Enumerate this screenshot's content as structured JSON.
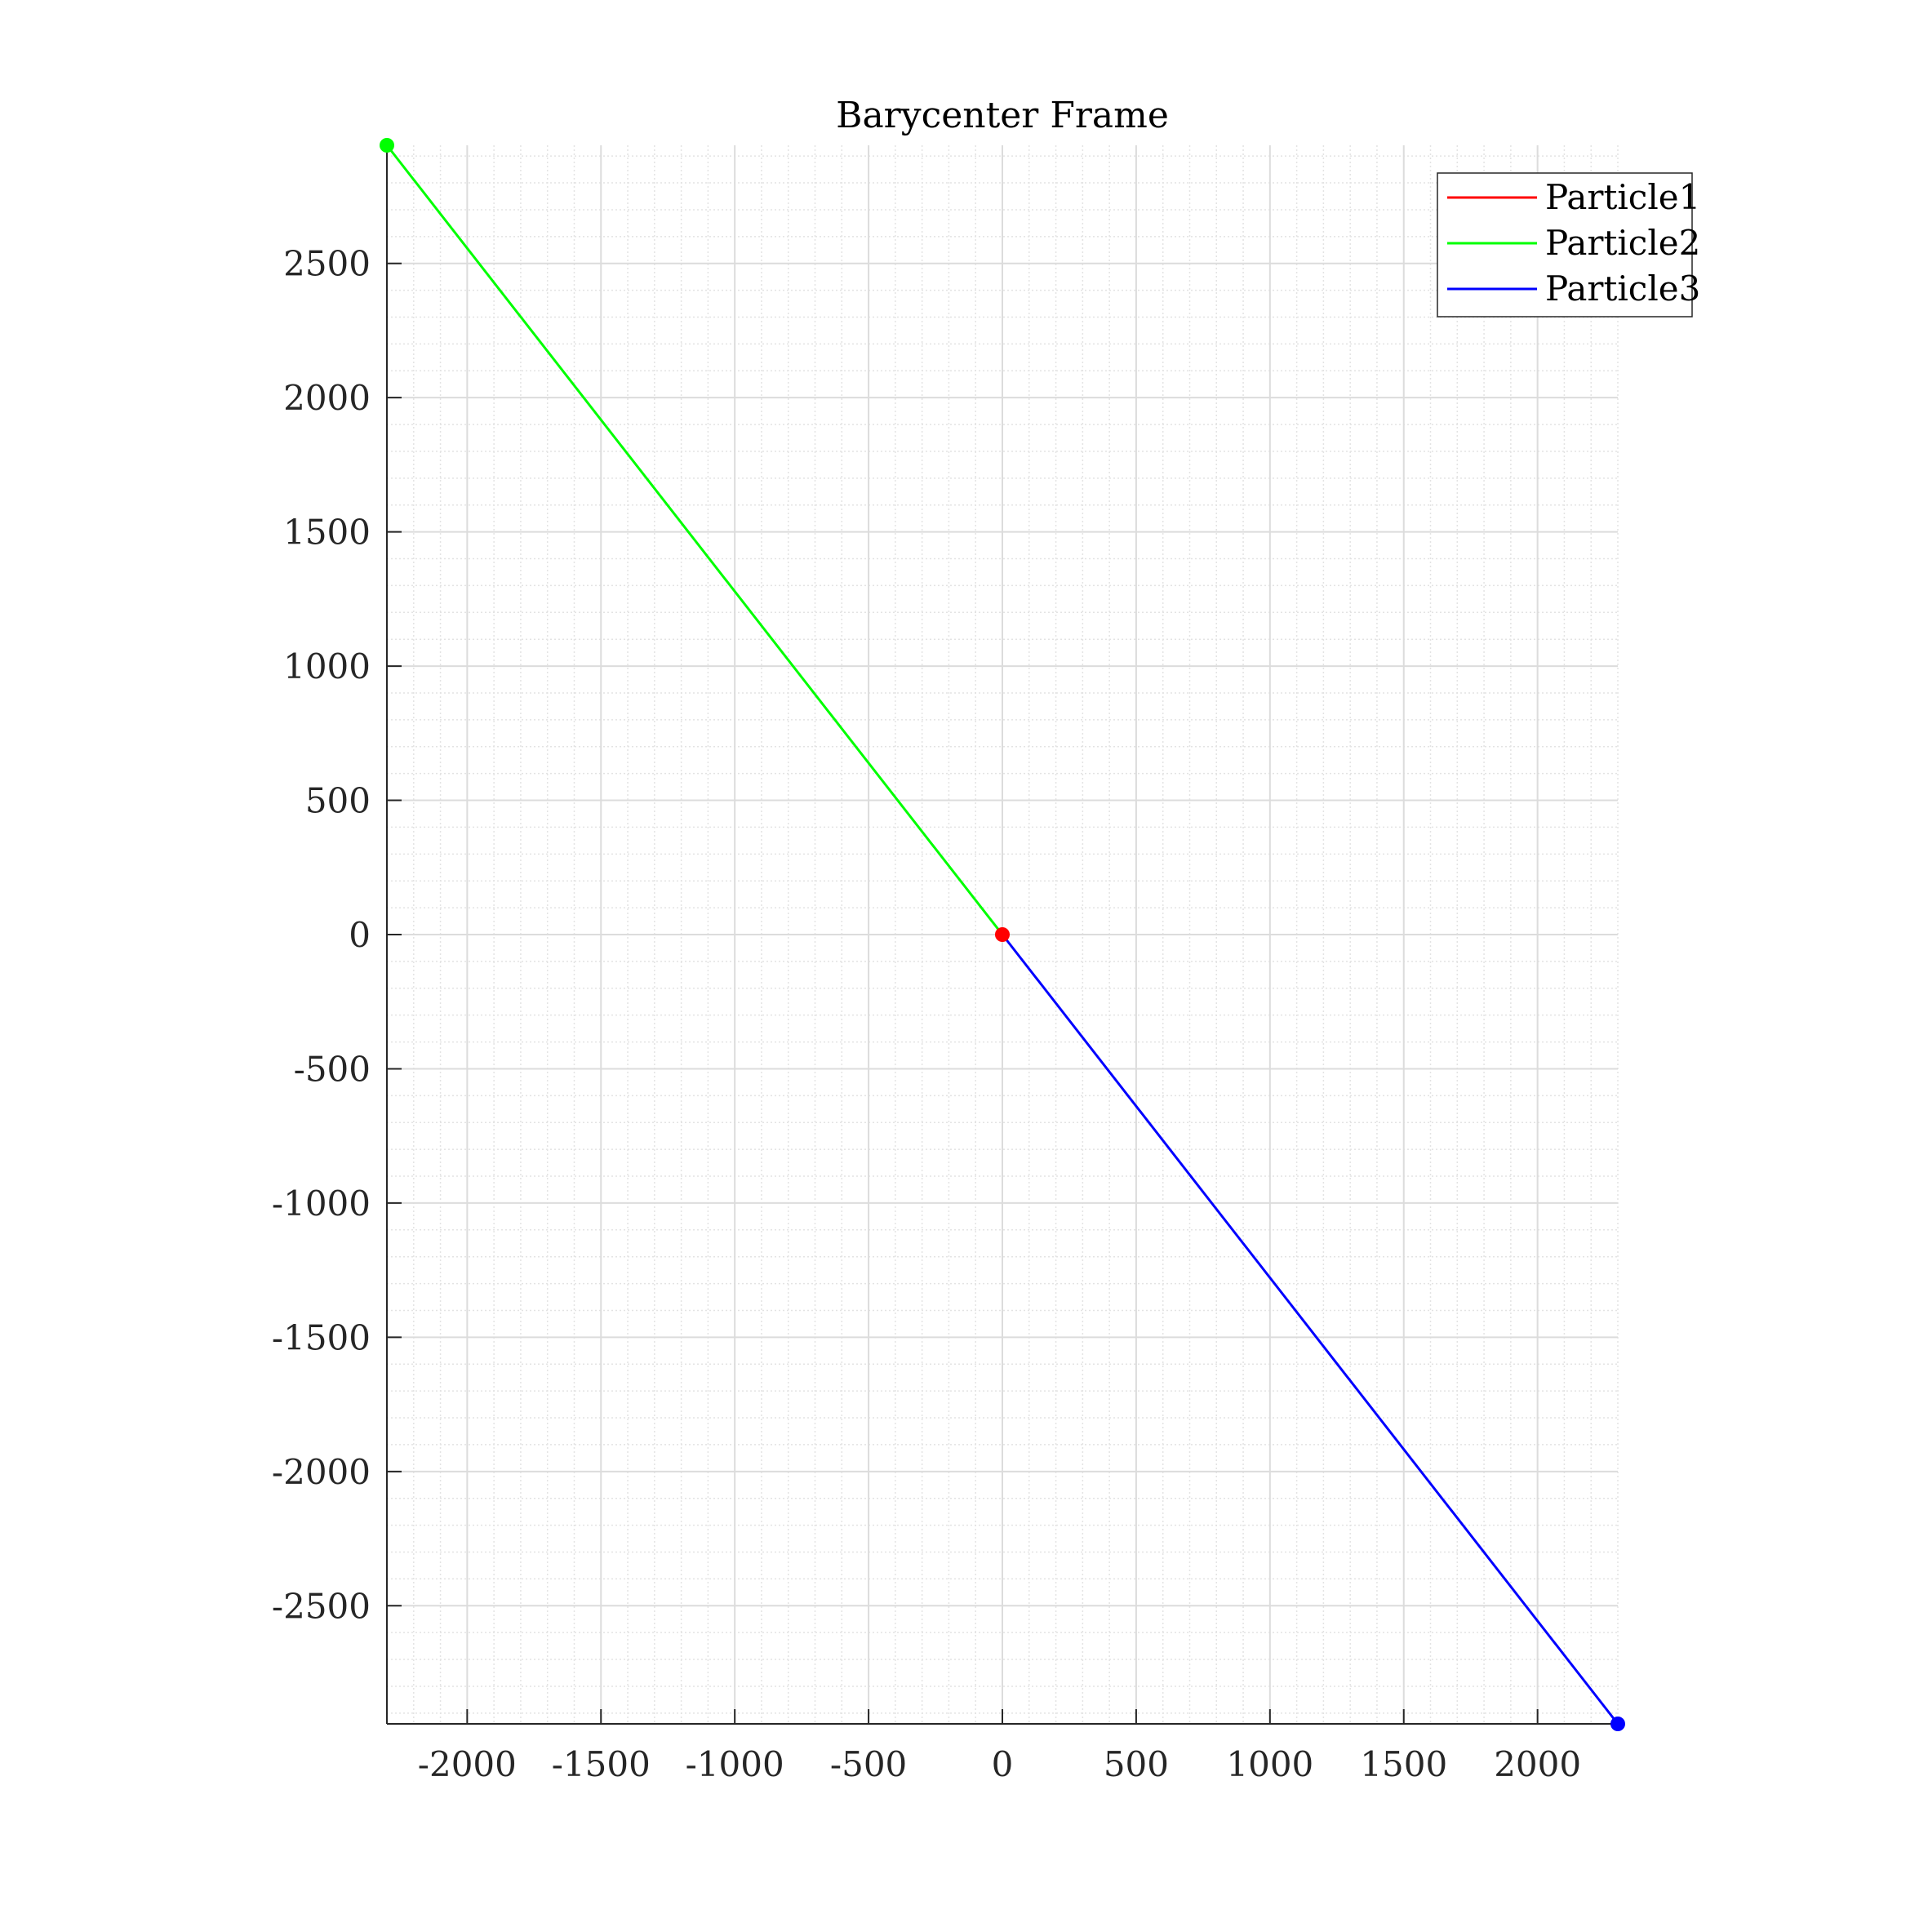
{
  "chart_data": {
    "type": "line",
    "title": "Barycenter Frame",
    "xlabel": "",
    "ylabel": "",
    "xlim": [
      -2300,
      2300
    ],
    "ylim": [
      -2940,
      2940
    ],
    "xticks": [
      -2000,
      -1500,
      -1000,
      -500,
      0,
      500,
      1000,
      1500,
      2000
    ],
    "xtick_labels": [
      "-2000",
      "-1500",
      "-1000",
      "-500",
      "0",
      "500",
      "1000",
      "1500",
      "2000"
    ],
    "yticks": [
      -2500,
      -2000,
      -1500,
      -1000,
      -500,
      0,
      500,
      1000,
      1500,
      2000,
      2500
    ],
    "ytick_labels": [
      "-2500",
      "-2000",
      "-1500",
      "-1000",
      "-500",
      "0",
      "500",
      "1000",
      "1500",
      "2000",
      "2500"
    ],
    "grid": true,
    "minor_grid": true,
    "legend_position": "top-right",
    "series": [
      {
        "name": "Particle1",
        "color": "#ff0000",
        "points": [
          {
            "x": 0,
            "y": 0
          }
        ],
        "end_marker": {
          "x": 0,
          "y": 0
        }
      },
      {
        "name": "Particle2",
        "color": "#00ff00",
        "points": [
          {
            "x": 0,
            "y": 0
          },
          {
            "x": -2300,
            "y": 2940
          }
        ],
        "end_marker": {
          "x": -2300,
          "y": 2940
        }
      },
      {
        "name": "Particle3",
        "color": "#0000ff",
        "points": [
          {
            "x": 0,
            "y": 0
          },
          {
            "x": 2300,
            "y": -2940
          }
        ],
        "end_marker": {
          "x": 2300,
          "y": -2940
        }
      }
    ]
  }
}
